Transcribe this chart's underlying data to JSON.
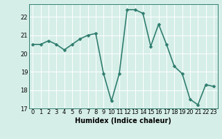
{
  "x": [
    0,
    1,
    2,
    3,
    4,
    5,
    6,
    7,
    8,
    9,
    10,
    11,
    12,
    13,
    14,
    15,
    16,
    17,
    18,
    19,
    20,
    21,
    22,
    23
  ],
  "y": [
    20.5,
    20.5,
    20.7,
    20.5,
    20.2,
    20.5,
    20.8,
    21.0,
    21.1,
    18.9,
    17.4,
    18.9,
    22.4,
    22.4,
    22.2,
    20.4,
    21.6,
    20.5,
    19.3,
    18.9,
    17.5,
    17.2,
    18.3,
    18.2
  ],
  "line_color": "#2e7d6e",
  "marker_color": "#2e7d6e",
  "bg_color": "#d6eee8",
  "grid_color": "#ffffff",
  "xlabel": "Humidex (Indice chaleur)",
  "xlim": [
    -0.5,
    23.5
  ],
  "ylim": [
    17.0,
    22.7
  ],
  "yticks": [
    17,
    18,
    19,
    20,
    21,
    22
  ],
  "xtick_labels": [
    "0",
    "1",
    "2",
    "3",
    "4",
    "5",
    "6",
    "7",
    "8",
    "9",
    "10",
    "11",
    "12",
    "13",
    "14",
    "15",
    "16",
    "17",
    "18",
    "19",
    "20",
    "21",
    "22",
    "23"
  ],
  "xlabel_fontsize": 7,
  "tick_fontsize": 6,
  "line_width": 1.2,
  "marker_size": 2.5
}
